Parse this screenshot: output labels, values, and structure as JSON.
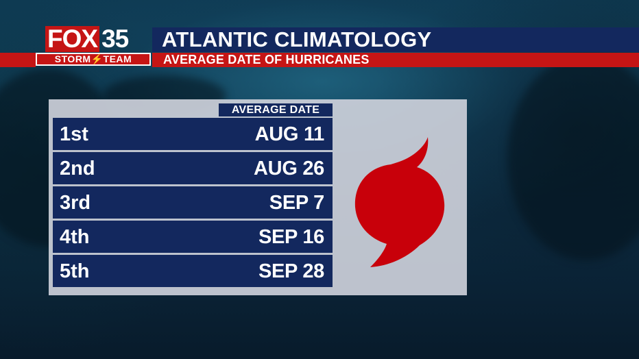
{
  "brand": {
    "station": "FOX",
    "channel_number": "35",
    "team": "STORM⚡TEAM"
  },
  "header": {
    "title": "ATLANTIC CLIMATOLOGY",
    "subtitle": "AVERAGE DATE OF HURRICANES"
  },
  "table": {
    "column_header": "AVERAGE DATE",
    "rows": [
      {
        "label": "1st",
        "date": "AUG 11"
      },
      {
        "label": "2nd",
        "date": "AUG 26"
      },
      {
        "label": "3rd",
        "date": "SEP 7"
      },
      {
        "label": "4th",
        "date": "SEP 16"
      },
      {
        "label": "5th",
        "date": "SEP 28"
      }
    ]
  },
  "icons": {
    "hurricane": "hurricane-icon"
  },
  "colors": {
    "navy": "#13285e",
    "red": "#c51515",
    "hurricane_red": "#c8000a",
    "panel": "#cdd0da"
  }
}
